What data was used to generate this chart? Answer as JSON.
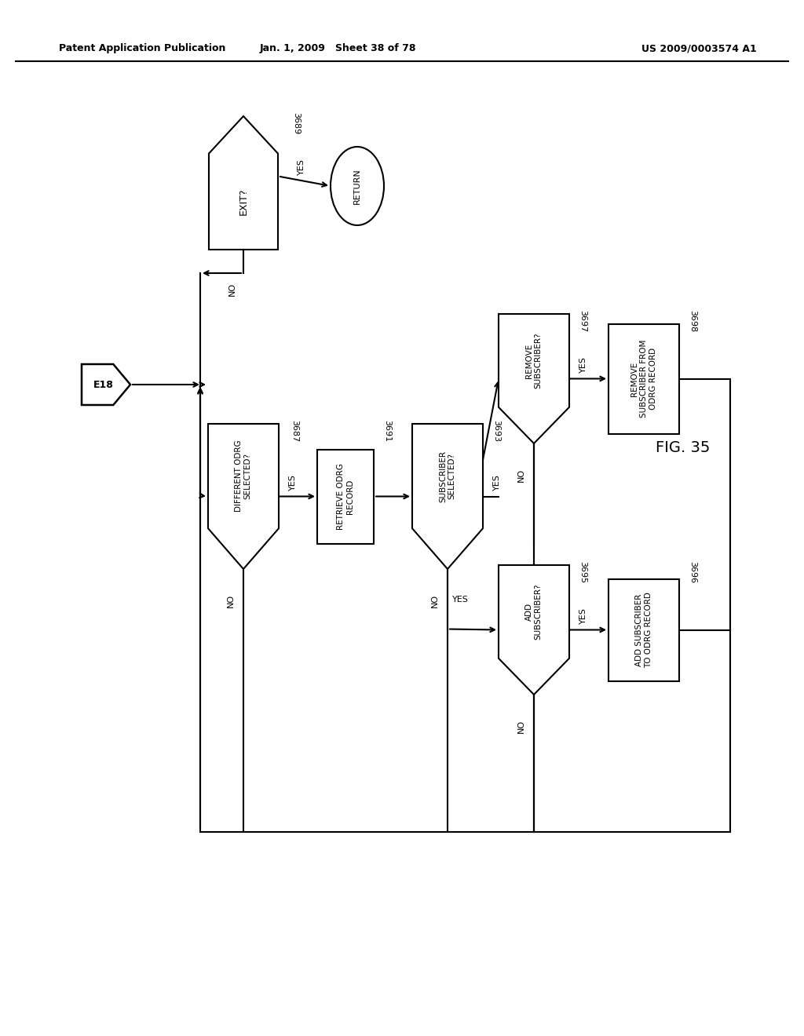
{
  "title_left": "Patent Application Publication",
  "title_mid": "Jan. 1, 2009   Sheet 38 of 78",
  "title_right": "US 2009/0003574 A1",
  "fig_label": "FIG. 35",
  "background": "#ffffff"
}
